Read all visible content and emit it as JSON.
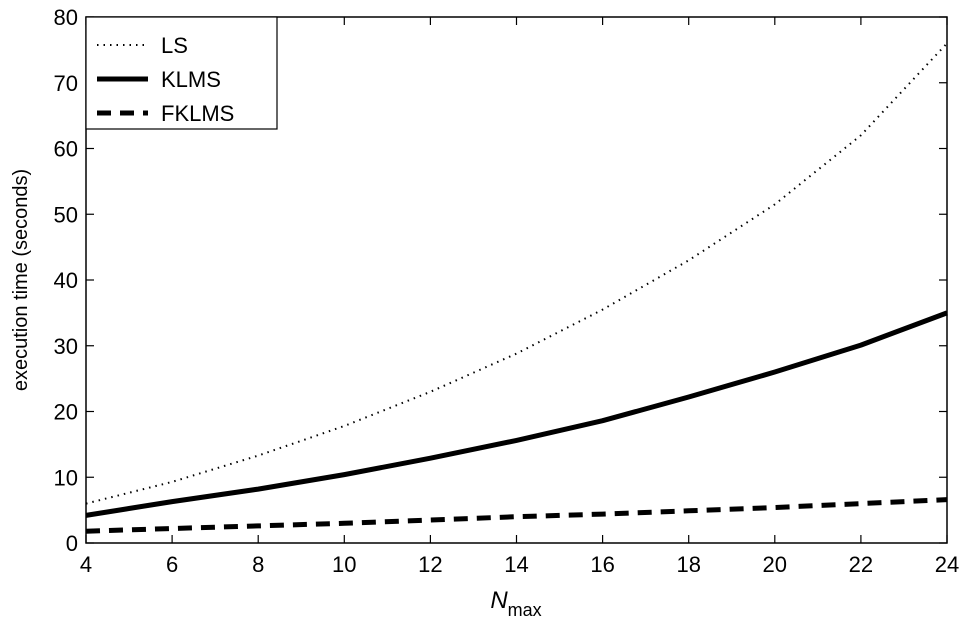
{
  "chart_data": {
    "type": "line",
    "title": "",
    "xlabel": "N",
    "xlabel_sub": "max",
    "ylabel": "execution time (seconds)",
    "xlim": [
      4,
      24
    ],
    "ylim": [
      0,
      80
    ],
    "xticks": [
      4,
      6,
      8,
      10,
      12,
      14,
      16,
      18,
      20,
      22,
      24
    ],
    "yticks": [
      0,
      10,
      20,
      30,
      40,
      50,
      60,
      70,
      80
    ],
    "grid": false,
    "legend_position": "top-left",
    "x": [
      4,
      6,
      8,
      10,
      12,
      14,
      16,
      18,
      20,
      22,
      24
    ],
    "series": [
      {
        "name": "LS",
        "style": "dotted",
        "values": [
          6.0,
          9.3,
          13.3,
          17.8,
          23.0,
          28.8,
          35.5,
          43.0,
          51.5,
          62.0,
          76.0
        ]
      },
      {
        "name": "KLMS",
        "style": "solid",
        "values": [
          4.2,
          6.3,
          8.2,
          10.4,
          12.9,
          15.6,
          18.6,
          22.2,
          26.0,
          30.1,
          35.0
        ]
      },
      {
        "name": "FKLMS",
        "style": "dashed",
        "values": [
          1.8,
          2.2,
          2.6,
          3.0,
          3.5,
          4.0,
          4.4,
          4.9,
          5.4,
          6.0,
          6.6
        ]
      }
    ],
    "color": "#000000"
  }
}
